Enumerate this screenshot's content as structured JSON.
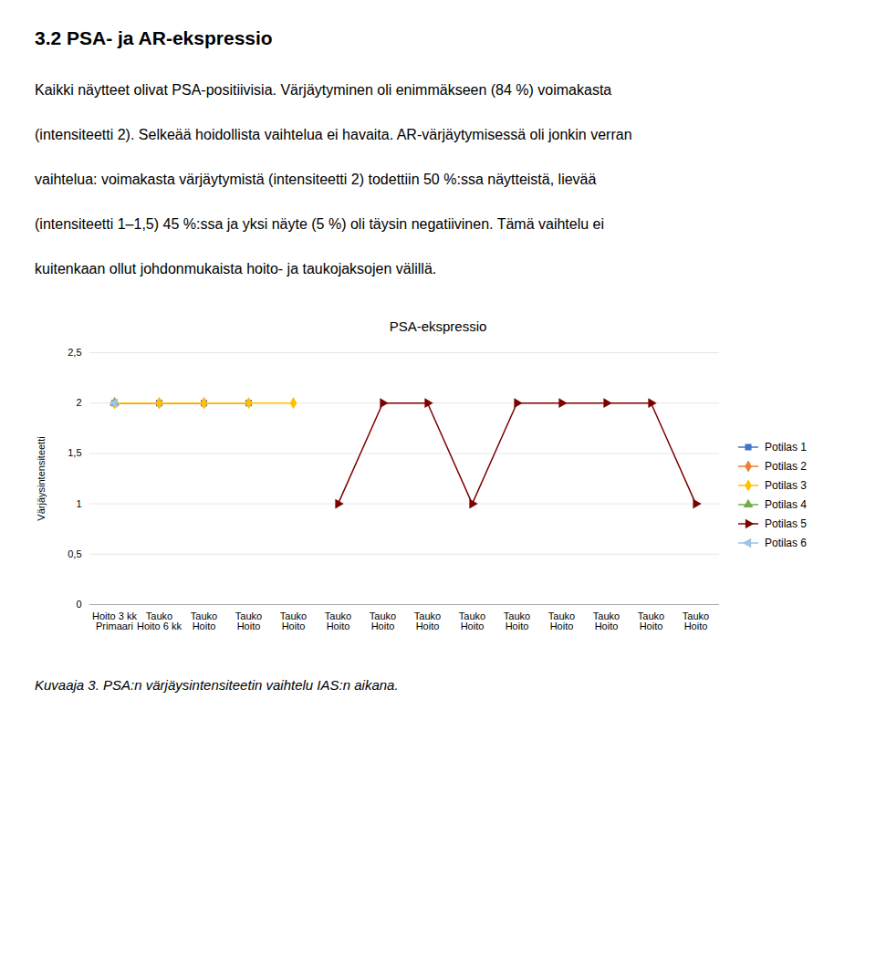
{
  "heading": "3.2 PSA- ja AR-ekspressio",
  "text_lines": [
    "Kaikki näytteet olivat PSA-positiivisia. Värjäytyminen oli enimmäkseen (84 %) voimakasta",
    "(intensiteetti 2). Selkeää hoidollista vaihtelua ei havaita. AR-värjäytymisessä oli jonkin verran",
    "vaihtelua: voimakasta värjäytymistä (intensiteetti 2) todettiin 50 %:ssa näytteistä, lievää",
    "(intensiteetti 1–1,5) 45 %:ssa ja yksi näyte (5 %) oli täysin negatiivinen. Tämä vaihtelu ei",
    "kuitenkaan ollut johdonmukaista hoito- ja taukojaksojen välillä."
  ],
  "chart_data": {
    "type": "line",
    "title": "PSA-ekspressio",
    "caption": "Kuvaaja 3. PSA:n värjäysintensiteetin vaihtelu IAS:n aikana.",
    "ylabel": "Värjäysintensiteetti",
    "categories": [
      "Hoito 3 kk\nPrimaari",
      "Tauko\nHoito 6 kk",
      "Tauko\nHoito",
      "Tauko\nHoito",
      "Tauko\nHoito",
      "Tauko\nHoito",
      "Tauko\nHoito",
      "Tauko\nHoito",
      "Tauko\nHoito",
      "Tauko\nHoito",
      "Tauko\nHoito",
      "Tauko\nHoito",
      "Tauko\nHoito",
      "Tauko\nHoito"
    ],
    "ylim": [
      0,
      2.5
    ],
    "yticks": [
      0,
      {
        "value": 0.5,
        "label": "0,5"
      },
      1,
      {
        "value": 1.5,
        "label": "1,5"
      },
      2,
      {
        "value": 2.5,
        "label": "2,5"
      }
    ],
    "grid": true,
    "legend": "right",
    "series": [
      {
        "name": "Potilas 1",
        "color": "#4472C4",
        "marker": "square",
        "values": [
          2,
          2,
          2,
          2,
          null,
          null,
          null,
          null,
          null,
          null,
          null,
          null,
          null,
          null
        ]
      },
      {
        "name": "Potilas 2",
        "color": "#ED7D31",
        "marker": "diamond",
        "values": [
          2,
          2,
          2,
          null,
          null,
          null,
          null,
          null,
          null,
          null,
          null,
          null,
          null,
          null
        ]
      },
      {
        "name": "Potilas 3",
        "color": "#FFC000",
        "marker": "diamond",
        "values": [
          2,
          2,
          2,
          2,
          2,
          null,
          null,
          null,
          null,
          null,
          null,
          null,
          null,
          null
        ]
      },
      {
        "name": "Potilas 4",
        "color": "#70AD47",
        "marker": "triangle-up",
        "values": [
          2,
          null,
          null,
          null,
          null,
          null,
          null,
          null,
          null,
          null,
          null,
          null,
          null,
          null
        ]
      },
      {
        "name": "Potilas 5",
        "color": "#7B0000",
        "marker": "triangle-right",
        "values": [
          null,
          null,
          null,
          null,
          null,
          1,
          2,
          2,
          1,
          2,
          2,
          2,
          2,
          1
        ]
      },
      {
        "name": "Potilas 6",
        "color": "#9DC3E6",
        "marker": "triangle-left",
        "values": [
          2,
          null,
          null,
          null,
          null,
          null,
          null,
          null,
          null,
          null,
          null,
          null,
          null,
          null
        ]
      }
    ]
  }
}
